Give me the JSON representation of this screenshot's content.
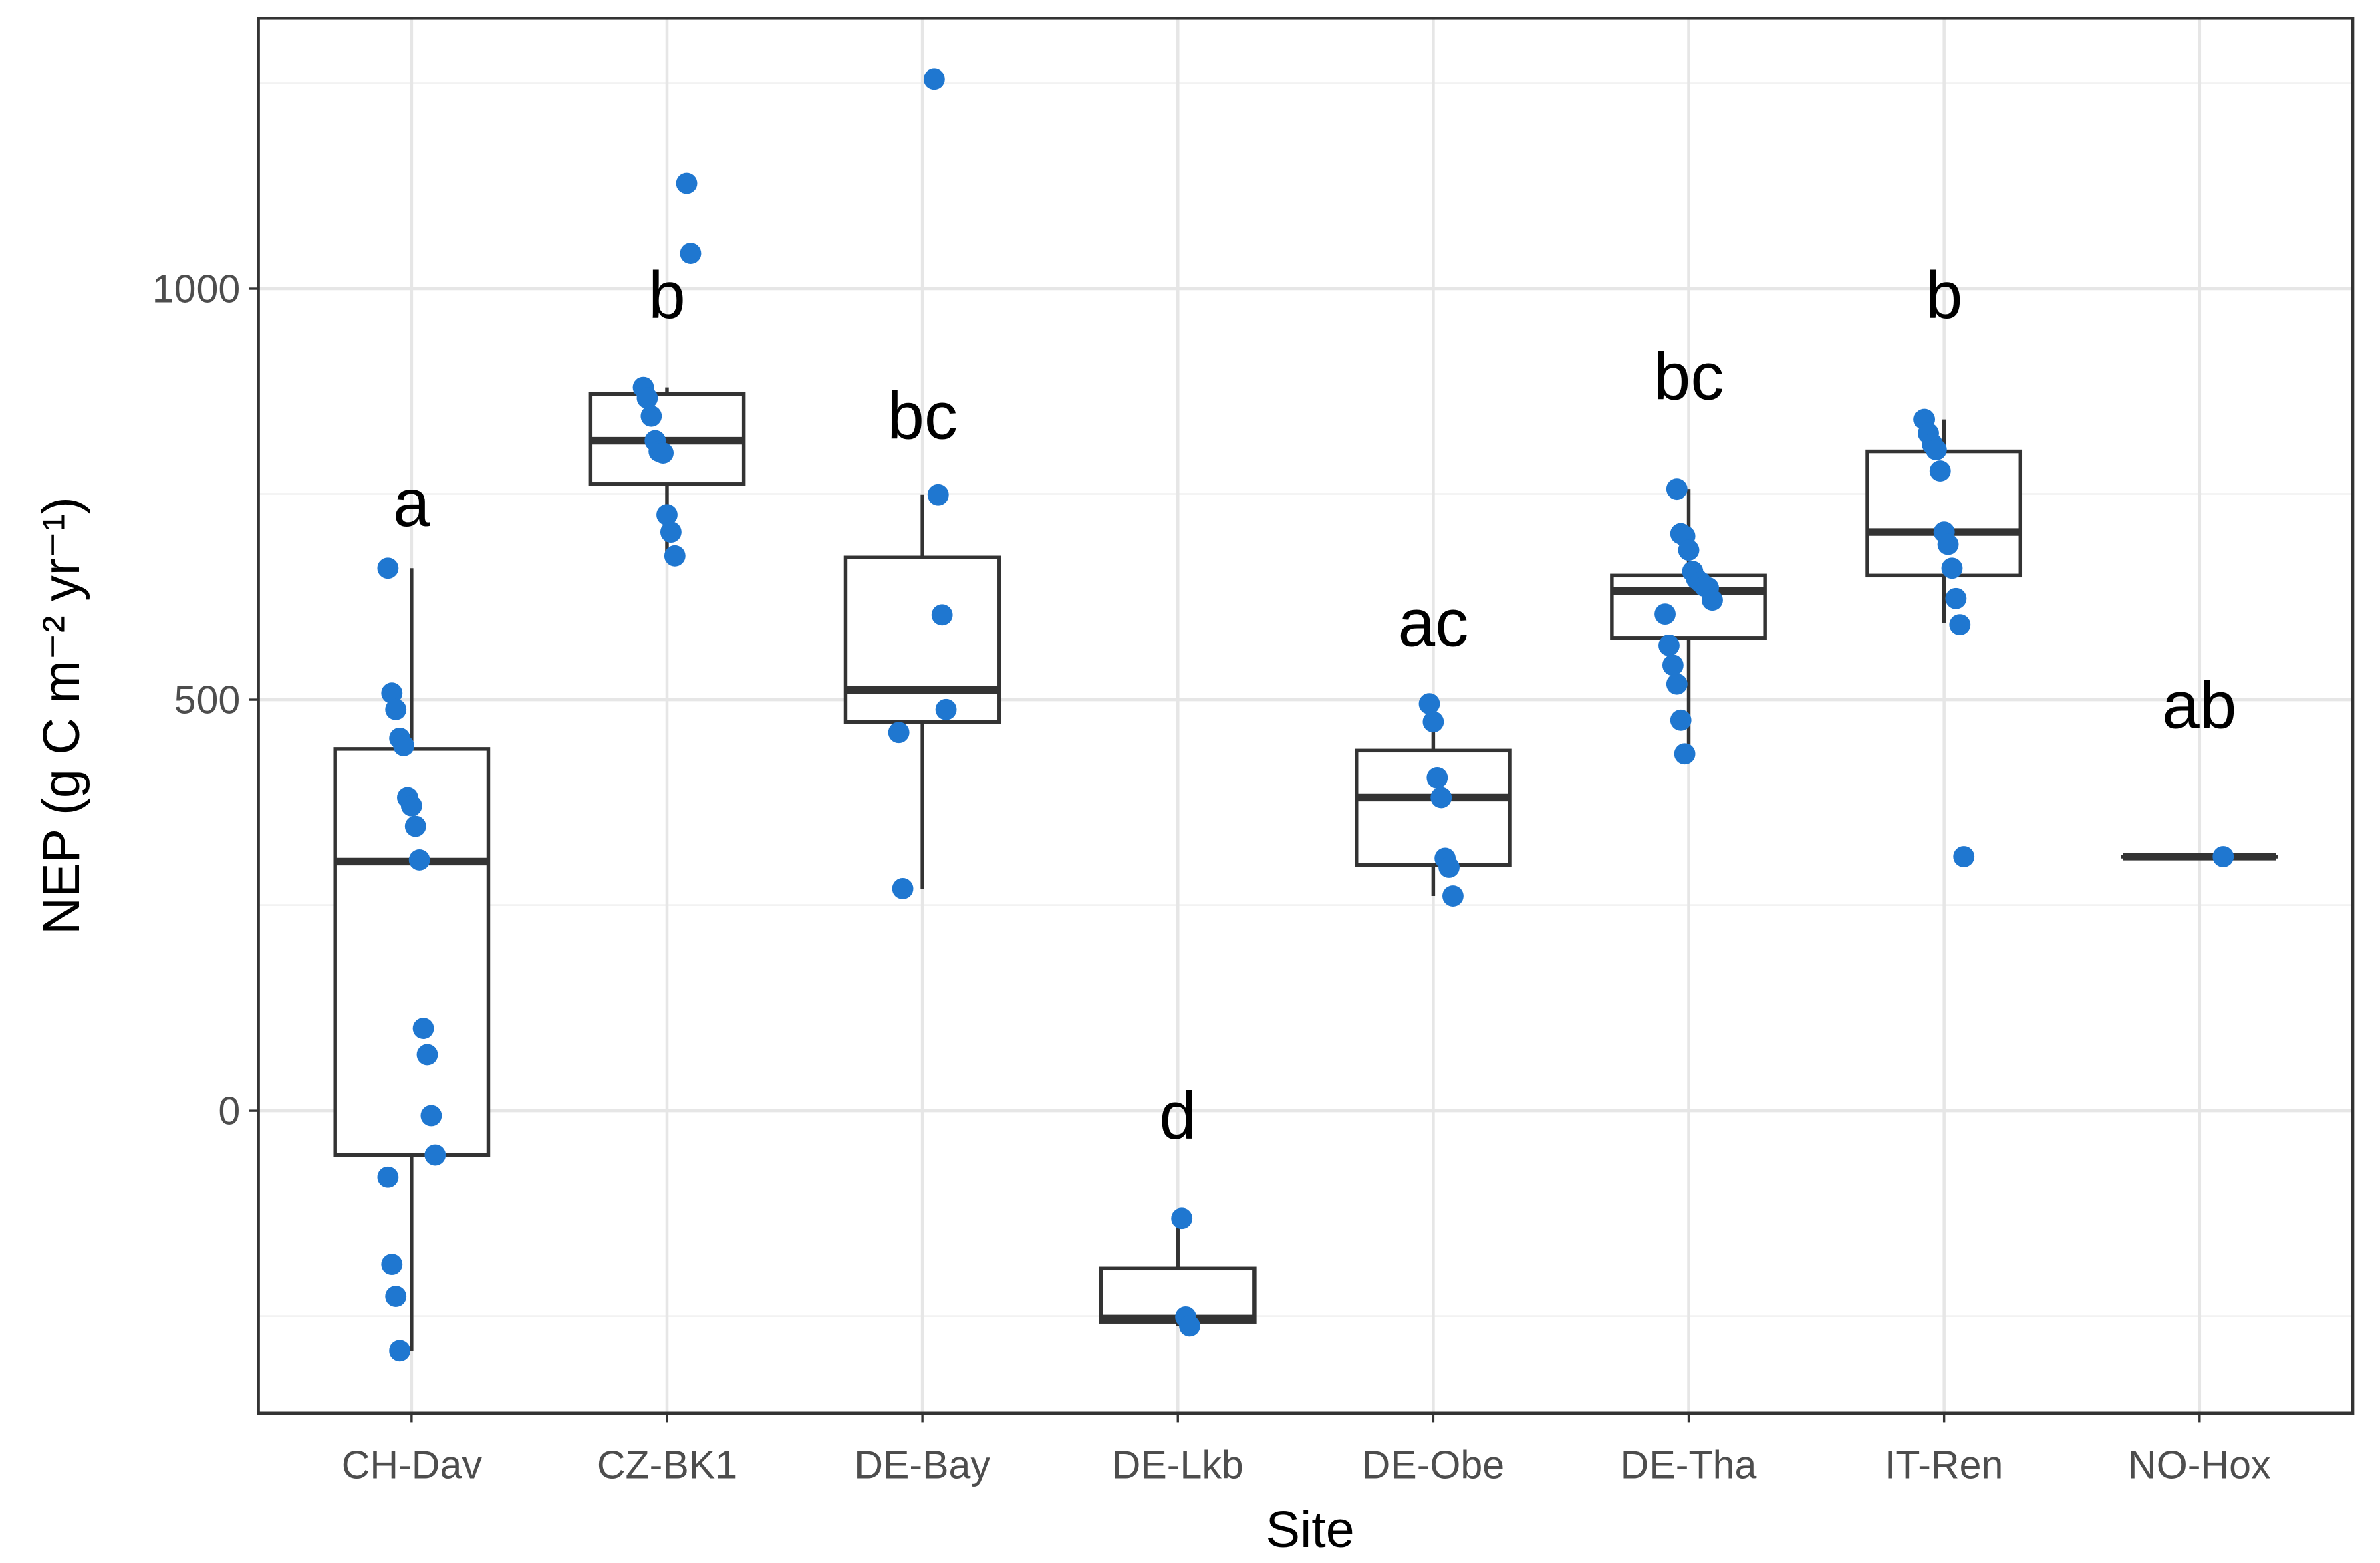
{
  "chart_data": {
    "type": "boxplot",
    "xlabel": "Site",
    "ylabel": "NEP (g C m⁻² yr⁻¹)",
    "categories": [
      "CH-Dav",
      "CZ-BK1",
      "DE-Bay",
      "DE-Lkb",
      "DE-Obe",
      "DE-Tha",
      "IT-Ren",
      "NO-Hox"
    ],
    "boxes": [
      {
        "low": -292,
        "q1": -54,
        "median": 303,
        "q3": 440,
        "high": 660
      },
      {
        "low": 675,
        "q1": 762,
        "median": 815,
        "q3": 872,
        "high": 880
      },
      {
        "low": 270,
        "q1": 473,
        "median": 512,
        "q3": 673,
        "high": 749
      },
      {
        "low": -262,
        "q1": -257,
        "median": -253,
        "q3": -192,
        "high": -131
      },
      {
        "low": 261,
        "q1": 299,
        "median": 381,
        "q3": 438,
        "high": 495
      },
      {
        "low": 434,
        "q1": 575,
        "median": 632,
        "q3": 651,
        "high": 756
      },
      {
        "low": 593,
        "q1": 651,
        "median": 704,
        "q3": 802,
        "high": 841
      },
      {
        "low": 309,
        "q1": 309,
        "median": 309,
        "q3": 309,
        "high": 309
      }
    ],
    "points": [
      [
        660,
        508,
        488,
        453,
        444,
        381,
        371,
        346,
        305,
        100,
        68,
        -6,
        -54,
        -81,
        -187,
        -226,
        -292
      ],
      [
        1128,
        1043,
        880,
        867,
        845,
        815,
        802,
        800,
        725,
        704,
        675
      ],
      [
        1255,
        749,
        603,
        488,
        460,
        270
      ],
      [
        -131,
        -251,
        -262
      ],
      [
        495,
        473,
        405,
        381,
        307,
        296,
        261
      ],
      [
        756,
        702,
        699,
        682,
        656,
        647,
        643,
        638,
        636,
        621,
        604,
        566,
        542,
        519,
        475,
        434
      ],
      [
        841,
        824,
        811,
        804,
        778,
        704,
        689,
        660,
        623,
        591,
        309
      ],
      [
        309
      ]
    ],
    "annotations": [
      {
        "text": "a",
        "y": 741
      },
      {
        "text": "b",
        "y": 994
      },
      {
        "text": "bc",
        "y": 847
      },
      {
        "text": "d",
        "y": -4
      },
      {
        "text": "ac",
        "y": 595
      },
      {
        "text": "bc",
        "y": 895
      },
      {
        "text": "b",
        "y": 994
      },
      {
        "text": "ab",
        "y": 495
      }
    ],
    "point_color": "#1f77d0",
    "box_color": "#333333",
    "ylim": [
      -368,
      1329
    ],
    "yticks": [
      0,
      500,
      1000
    ],
    "yminor": [
      -250,
      250,
      750,
      1250
    ],
    "grid": true
  }
}
